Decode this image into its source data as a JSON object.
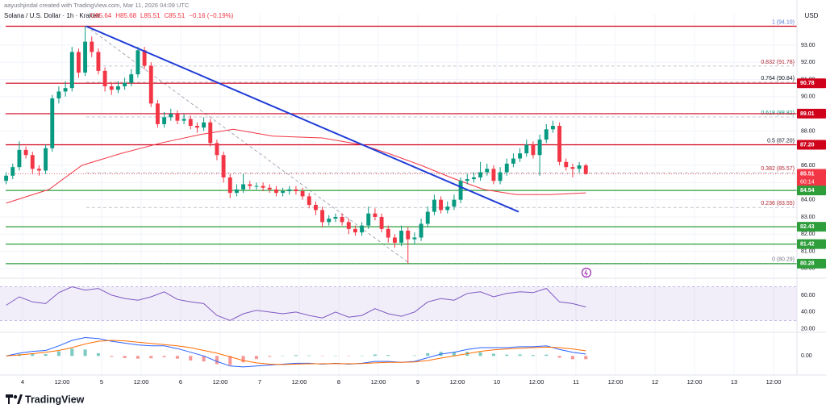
{
  "header": {
    "credit": "aayushjindal created with TradingView.com, Mar 11, 2026 04:09 UTC",
    "symbol": "Solana / U.S. Dollar · 1h · Kraken",
    "ohlc": [
      "O85.64",
      "H85.68",
      "L85.51",
      "C85.51",
      "−0.16 (−0.19%)"
    ],
    "currency": "USD"
  },
  "footer": {
    "brand": "TradingView"
  },
  "chart_data": [
    {
      "type": "candlestick",
      "up_color": "#089981",
      "down_color": "#f23645",
      "grid": true,
      "xlim": [
        -6.86,
        235.1
      ],
      "xticks": [
        {
          "value": 0,
          "label": "4"
        },
        {
          "value": 12,
          "label": "12:00"
        },
        {
          "value": 24,
          "label": "5"
        },
        {
          "value": 36,
          "label": "12:00"
        },
        {
          "value": 48,
          "label": "6"
        },
        {
          "value": 60,
          "label": "12:00"
        },
        {
          "value": 72,
          "label": "7"
        },
        {
          "value": 84,
          "label": "12:00"
        },
        {
          "value": 96,
          "label": "8"
        },
        {
          "value": 108,
          "label": "12:00"
        },
        {
          "value": 120,
          "label": "9"
        },
        {
          "value": 132,
          "label": "12:00"
        },
        {
          "value": 144,
          "label": "10"
        },
        {
          "value": 156,
          "label": "12:00"
        },
        {
          "value": 168,
          "label": "11"
        },
        {
          "value": 180,
          "label": "12:00"
        },
        {
          "value": 192,
          "label": "12"
        },
        {
          "value": 204,
          "label": "12:00"
        },
        {
          "value": 216,
          "label": "13"
        },
        {
          "value": 228,
          "label": "12:00"
        }
      ],
      "ylim": [
        79.43,
        94.78
      ],
      "yticks": [
        {
          "value": 80,
          "label": "80.00"
        },
        {
          "value": 81,
          "label": "81.00"
        },
        {
          "value": 82,
          "label": "82.00"
        },
        {
          "value": 83,
          "label": "83.00"
        },
        {
          "value": 84,
          "label": "84.00"
        },
        {
          "value": 85,
          "label": "85.00"
        },
        {
          "value": 86,
          "label": "86.00"
        },
        {
          "value": 87,
          "label": "87.00"
        },
        {
          "value": 88,
          "label": "88.00"
        },
        {
          "value": 89,
          "label": "89.00"
        },
        {
          "value": 90,
          "label": "90.00"
        },
        {
          "value": 91,
          "label": "91.00"
        },
        {
          "value": 92,
          "label": "92.00"
        },
        {
          "value": 93,
          "label": "93.00"
        }
      ],
      "x": [
        -5,
        -3,
        -1,
        1,
        3,
        5,
        7,
        9,
        11,
        13,
        15,
        17,
        19,
        21,
        23,
        25,
        27,
        29,
        31,
        33,
        35,
        37,
        39,
        41,
        43,
        45,
        47,
        49,
        51,
        53,
        55,
        57,
        59,
        61,
        63,
        65,
        67,
        69,
        71,
        73,
        75,
        77,
        79,
        81,
        83,
        85,
        87,
        89,
        91,
        93,
        95,
        97,
        99,
        101,
        103,
        105,
        107,
        109,
        111,
        113,
        115,
        117,
        119,
        121,
        123,
        125,
        127,
        129,
        131,
        133,
        135,
        137,
        139,
        141,
        143,
        145,
        147,
        149,
        151,
        153,
        155,
        157,
        159,
        161,
        163,
        165,
        167,
        169,
        171
      ],
      "open": [
        85.1,
        85.4,
        85.9,
        86.9,
        86.6,
        85.8,
        85.7,
        87.0,
        89.9,
        90.3,
        90.5,
        92.6,
        91.4,
        93.2,
        92.6,
        91.5,
        90.6,
        90.4,
        90.6,
        90.8,
        91.3,
        92.7,
        91.8,
        89.6,
        88.4,
        88.8,
        89.0,
        88.6,
        88.7,
        88.3,
        88.2,
        88.5,
        87.3,
        86.6,
        85.3,
        84.4,
        84.6,
        84.9,
        84.8,
        84.8,
        84.7,
        84.6,
        84.4,
        84.5,
        84.6,
        84.5,
        84.2,
        83.7,
        83.4,
        82.7,
        82.9,
        83.0,
        82.7,
        82.3,
        82.1,
        82.5,
        83.2,
        83.0,
        82.3,
        81.8,
        81.5,
        82.2,
        81.7,
        81.8,
        82.6,
        83.3,
        84.0,
        83.4,
        83.6,
        84.0,
        85.1,
        85.2,
        85.3,
        85.6,
        85.8,
        85.1,
        85.6,
        86.1,
        86.4,
        86.7,
        87.2,
        86.6,
        87.5,
        88.1,
        88.3,
        86.2,
        85.9,
        85.8,
        86.0
      ],
      "high": [
        85.6,
        86.1,
        87.4,
        87.1,
        86.8,
        86.0,
        87.2,
        90.1,
        90.6,
        90.9,
        92.9,
        92.8,
        94.1,
        93.5,
        92.8,
        91.7,
        90.8,
        90.9,
        91.1,
        91.6,
        92.9,
        92.9,
        92.0,
        89.8,
        89.1,
        89.3,
        89.2,
        89.0,
        88.9,
        88.5,
        88.8,
        88.7,
        87.5,
        86.8,
        85.5,
        84.9,
        85.5,
        85.1,
        85.0,
        85.0,
        84.9,
        84.8,
        84.7,
        84.8,
        84.8,
        84.7,
        84.4,
        83.9,
        83.6,
        83.1,
        83.2,
        83.2,
        82.9,
        82.5,
        82.7,
        83.6,
        83.5,
        83.2,
        82.5,
        82.0,
        82.5,
        82.4,
        82.1,
        82.9,
        83.6,
        84.3,
        84.2,
        83.9,
        84.3,
        85.3,
        85.5,
        85.6,
        86.2,
        86.1,
        86.0,
        85.9,
        86.4,
        86.7,
        87.0,
        87.5,
        87.4,
        87.8,
        88.4,
        88.6,
        88.5,
        86.4,
        86.1,
        86.2,
        86.1
      ],
      "low": [
        84.9,
        85.2,
        85.7,
        86.4,
        85.5,
        85.4,
        85.5,
        86.8,
        89.6,
        90.0,
        90.3,
        91.1,
        91.2,
        92.3,
        91.3,
        90.3,
        90.1,
        90.2,
        90.4,
        90.6,
        91.1,
        91.6,
        89.4,
        88.2,
        88.2,
        88.6,
        88.4,
        88.4,
        88.1,
        87.9,
        88.0,
        87.1,
        86.3,
        85.0,
        84.1,
        84.2,
        84.4,
        84.6,
        84.6,
        84.5,
        84.4,
        84.2,
        84.2,
        84.3,
        84.3,
        84.0,
        83.5,
        83.1,
        82.4,
        82.5,
        82.7,
        82.5,
        82.0,
        81.9,
        81.9,
        82.3,
        82.8,
        82.1,
        81.5,
        81.2,
        81.3,
        80.29,
        81.4,
        81.6,
        82.4,
        83.1,
        83.2,
        83.2,
        83.4,
        83.8,
        84.9,
        85.0,
        85.1,
        85.4,
        84.9,
        84.9,
        85.4,
        85.9,
        86.2,
        86.5,
        86.4,
        85.4,
        87.3,
        87.9,
        86.0,
        85.7,
        85.3,
        85.6,
        85.45
      ],
      "close": [
        85.4,
        85.9,
        86.9,
        86.6,
        85.8,
        85.7,
        87.0,
        89.9,
        90.3,
        90.5,
        92.6,
        91.4,
        93.2,
        92.6,
        91.5,
        90.6,
        90.4,
        90.6,
        90.8,
        91.3,
        92.7,
        91.8,
        89.6,
        88.4,
        88.8,
        89.0,
        88.6,
        88.7,
        88.3,
        88.2,
        88.5,
        87.3,
        86.6,
        85.3,
        84.4,
        84.6,
        84.9,
        84.8,
        84.8,
        84.7,
        84.6,
        84.4,
        84.5,
        84.6,
        84.5,
        84.2,
        83.7,
        83.4,
        82.7,
        82.9,
        83.0,
        82.7,
        82.3,
        82.1,
        82.5,
        83.2,
        83.0,
        82.3,
        81.8,
        81.5,
        82.2,
        81.7,
        81.8,
        82.6,
        83.3,
        84.0,
        83.4,
        83.6,
        84.0,
        85.1,
        85.2,
        85.3,
        85.6,
        85.8,
        85.1,
        85.6,
        86.1,
        86.4,
        86.7,
        87.2,
        86.6,
        87.5,
        88.1,
        88.3,
        86.2,
        85.9,
        85.8,
        86.0,
        85.51
      ],
      "moving_average": {
        "color": "#f23645",
        "x": [
          -5,
          8,
          18,
          30,
          42,
          54,
          64,
          76,
          91,
          103,
          111,
          121,
          130,
          140,
          150,
          160,
          171
        ],
        "values": [
          83.8,
          84.6,
          86.0,
          86.7,
          87.3,
          87.8,
          88.1,
          87.7,
          87.6,
          87.2,
          86.7,
          86.0,
          85.3,
          84.6,
          84.3,
          84.3,
          84.4
        ]
      },
      "trendline": {
        "color": "#1e3bd6",
        "x": [
          19.3,
          150.6
        ],
        "values": [
          94.1,
          83.3
        ]
      },
      "fib_line": {
        "color": "#9598a1",
        "x": [
          19.3,
          117.5
        ],
        "values": [
          94.1,
          80.29
        ]
      },
      "fib_levels": [
        {
          "label": "1 (94.10)",
          "value": 94.1,
          "color": "#5b7bd6"
        },
        {
          "label": "0.832 (91.78)",
          "value": 91.78,
          "color": "#b22833"
        },
        {
          "label": "0.764 (90.84)",
          "value": 90.84,
          "color": "#131722"
        },
        {
          "label": "0.618 (88.82)",
          "value": 88.82,
          "color": "#089981"
        },
        {
          "label": "0.5 (87.20)",
          "value": 87.2,
          "color": "#131722"
        },
        {
          "label": "0.382 (85.57)",
          "value": 85.57,
          "color": "#b22833"
        },
        {
          "label": "0.236 (83.55)",
          "value": 83.55,
          "color": "#b22833"
        },
        {
          "label": "0 (80.29)",
          "value": 80.29,
          "color": "#787b86"
        }
      ],
      "levels": [
        {
          "value": 94.1,
          "color": "#d0021b",
          "style": "solid"
        },
        {
          "value": 90.78,
          "color": "#d0021b",
          "style": "solid"
        },
        {
          "value": 89.01,
          "color": "#d0021b",
          "style": "solid"
        },
        {
          "value": 87.2,
          "color": "#d0021b",
          "style": "solid"
        },
        {
          "value": 85.51,
          "color": "#f23645",
          "style": "dotted"
        },
        {
          "value": 84.54,
          "color": "#2e9e3a",
          "style": "solid"
        },
        {
          "value": 82.43,
          "color": "#2e9e3a",
          "style": "solid"
        },
        {
          "value": 81.42,
          "color": "#2e9e3a",
          "style": "solid"
        },
        {
          "value": 80.28,
          "color": "#2e9e3a",
          "style": "solid"
        }
      ],
      "price_tags": [
        {
          "value": 90.78,
          "label": "90.78",
          "color": "#d0021b"
        },
        {
          "value": 89.01,
          "label": "89.01",
          "color": "#d0021b"
        },
        {
          "value": 87.2,
          "label": "87.20",
          "color": "#d0021b"
        },
        {
          "value": 85.51,
          "label": "85.51",
          "color": "#f23645"
        },
        {
          "value": 84.54,
          "label": "84.54",
          "color": "#2e9e3a"
        },
        {
          "value": 82.43,
          "label": "82.43",
          "color": "#2e9e3a"
        },
        {
          "value": 81.42,
          "label": "81.42",
          "color": "#2e9e3a"
        },
        {
          "value": 80.28,
          "label": "80.28",
          "color": "#2e9e3a"
        }
      ],
      "countdown": "60:14"
    },
    {
      "type": "line",
      "color": "#7e57c2",
      "ylim": [
        16,
        80
      ],
      "band": [
        30,
        70
      ],
      "yticks": [
        {
          "value": 60,
          "label": "60.00"
        },
        {
          "value": 40,
          "label": "40.00"
        },
        {
          "value": 20,
          "label": "20.00"
        }
      ],
      "x": [
        -5,
        -1,
        3,
        7,
        11,
        15,
        19,
        23,
        27,
        31,
        35,
        39,
        43,
        47,
        51,
        55,
        59,
        63,
        67,
        71,
        75,
        79,
        83,
        87,
        91,
        95,
        99,
        103,
        107,
        111,
        115,
        119,
        123,
        127,
        131,
        135,
        139,
        143,
        147,
        151,
        155,
        159,
        163,
        167,
        171
      ],
      "values": [
        48,
        58,
        52,
        50,
        63,
        70,
        66,
        68,
        60,
        56,
        54,
        58,
        64,
        55,
        52,
        50,
        36,
        30,
        38,
        42,
        40,
        38,
        40,
        36,
        33,
        40,
        34,
        36,
        44,
        38,
        35,
        40,
        52,
        56,
        54,
        62,
        64,
        58,
        62,
        64,
        63,
        68,
        52,
        50,
        46
      ]
    },
    {
      "type": "macd",
      "ylim": [
        -1,
        1.2
      ],
      "yticks": [
        {
          "value": 0,
          "label": "0.00"
        }
      ],
      "x": [
        -5,
        -1,
        3,
        7,
        11,
        15,
        19,
        23,
        27,
        31,
        35,
        39,
        43,
        47,
        51,
        55,
        59,
        63,
        67,
        71,
        75,
        79,
        83,
        87,
        91,
        95,
        99,
        103,
        107,
        111,
        115,
        119,
        123,
        127,
        131,
        135,
        139,
        143,
        147,
        151,
        155,
        159,
        163,
        167,
        171
      ],
      "macd": {
        "color": "#2962ff",
        "values": [
          0.0,
          0.15,
          0.25,
          0.3,
          0.55,
          0.85,
          1.0,
          0.95,
          0.8,
          0.7,
          0.6,
          0.55,
          0.55,
          0.4,
          0.2,
          0.0,
          -0.3,
          -0.55,
          -0.6,
          -0.55,
          -0.5,
          -0.45,
          -0.4,
          -0.4,
          -0.45,
          -0.4,
          -0.45,
          -0.4,
          -0.3,
          -0.3,
          -0.35,
          -0.3,
          -0.1,
          0.1,
          0.2,
          0.35,
          0.45,
          0.45,
          0.45,
          0.5,
          0.5,
          0.55,
          0.35,
          0.2,
          0.1
        ]
      },
      "signal": {
        "color": "#ff6d00",
        "values": [
          0.0,
          0.05,
          0.12,
          0.2,
          0.3,
          0.45,
          0.65,
          0.8,
          0.85,
          0.82,
          0.75,
          0.68,
          0.62,
          0.55,
          0.45,
          0.3,
          0.15,
          -0.05,
          -0.25,
          -0.38,
          -0.45,
          -0.47,
          -0.45,
          -0.43,
          -0.43,
          -0.42,
          -0.43,
          -0.42,
          -0.38,
          -0.35,
          -0.35,
          -0.33,
          -0.25,
          -0.12,
          0.0,
          0.12,
          0.25,
          0.33,
          0.38,
          0.42,
          0.45,
          0.48,
          0.45,
          0.38,
          0.28
        ]
      },
      "histogram": {
        "up_color": "#26a69a",
        "down_color": "#ef5350",
        "values": [
          0,
          0.1,
          0.13,
          0.1,
          0.25,
          0.4,
          0.35,
          0.15,
          -0.05,
          -0.12,
          -0.15,
          -0.13,
          -0.07,
          -0.15,
          -0.25,
          -0.3,
          -0.45,
          -0.5,
          -0.35,
          -0.17,
          -0.05,
          0.02,
          0.05,
          0.03,
          -0.02,
          0.02,
          -0.02,
          0.02,
          0.08,
          0.05,
          0,
          0.03,
          0.15,
          0.22,
          0.2,
          0.23,
          0.2,
          0.12,
          0.07,
          0.08,
          0.05,
          0.07,
          -0.1,
          -0.18,
          -0.18
        ]
      }
    }
  ]
}
